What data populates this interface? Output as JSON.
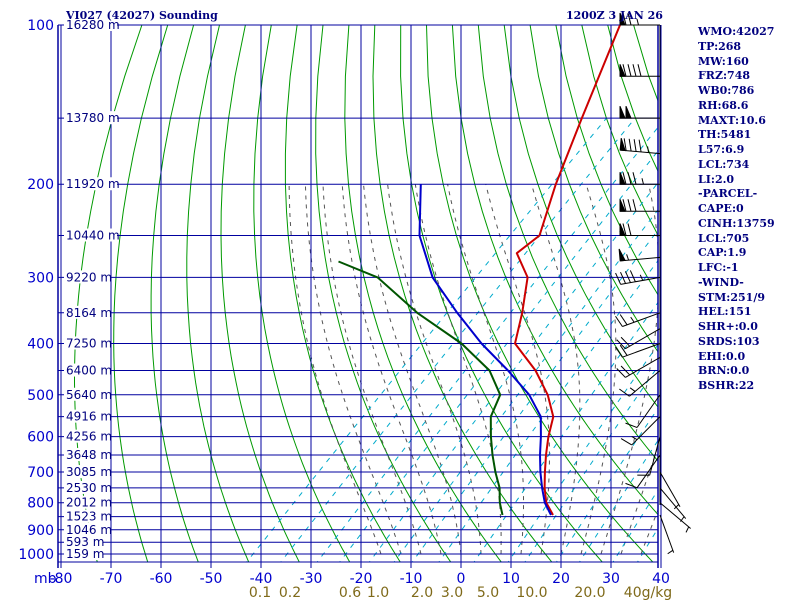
{
  "header": {
    "title": "VI027 (42027) Sounding",
    "datetime": "1200Z  3 JAN 26"
  },
  "stats": [
    "WMO:42027",
    "TP:268",
    "MW:160",
    "FRZ:748",
    "WB0:786",
    "RH:68.6",
    "MAXT:10.6",
    "TH:5481",
    "L57:6.9",
    "LCL:734",
    "LI:2.0",
    "-PARCEL-",
    "CAPE:0",
    "CINH:13759",
    "LCL:705",
    "CAP:1.9",
    "LFC:-1",
    "-WIND-",
    "STM:251/9",
    "HEL:151",
    "SHR+:0.0",
    "SRDS:103",
    "EHI:0.0",
    "BRN:0.0",
    "BSHR:22"
  ],
  "colors": {
    "grid": "#00009f",
    "dry_adiabat": "#009900",
    "moist_adiabat": "#555555",
    "mixing_ratio": "#00aacc",
    "temperature": "#cc0000",
    "dewpoint": "#005500",
    "parcel": "#0000cc",
    "label": "#00007f",
    "mixing_label": "#7f6a1a"
  },
  "chart_data": {
    "type": "line",
    "title": "VI027 (42027) Sounding",
    "ylabel": "mb",
    "pressure_ticks": [
      100,
      200,
      300,
      400,
      500,
      600,
      700,
      800,
      900,
      1000
    ],
    "pressure_tick_labels": [
      "100",
      "200",
      "300",
      "400",
      "500",
      "600",
      "700",
      "800",
      "900",
      "1000"
    ],
    "temperature_ticks": [
      -80,
      -70,
      -60,
      -50,
      -40,
      -30,
      -20,
      -10,
      0,
      10,
      20,
      30,
      40
    ],
    "temperature_tick_labels": [
      "-80",
      "-70",
      "-60",
      "-50",
      "-40",
      "-30",
      "-20",
      "-10",
      "0",
      "10",
      "20",
      "30",
      "40"
    ],
    "height_labels": [
      {
        "p": 100,
        "label": "16280 m"
      },
      {
        "p": 150,
        "label": "13780 m"
      },
      {
        "p": 200,
        "label": "11920 m"
      },
      {
        "p": 250,
        "label": "10440 m"
      },
      {
        "p": 300,
        "label": "9220 m"
      },
      {
        "p": 350,
        "label": "8164 m"
      },
      {
        "p": 400,
        "label": "7250 m"
      },
      {
        "p": 450,
        "label": "6400 m"
      },
      {
        "p": 500,
        "label": "5640 m"
      },
      {
        "p": 550,
        "label": "4916 m"
      },
      {
        "p": 600,
        "label": "4256 m"
      },
      {
        "p": 650,
        "label": "3648 m"
      },
      {
        "p": 700,
        "label": "3085 m"
      },
      {
        "p": 750,
        "label": "2530 m"
      },
      {
        "p": 800,
        "label": "2012 m"
      },
      {
        "p": 850,
        "label": "1523 m"
      },
      {
        "p": 900,
        "label": "1046 m"
      },
      {
        "p": 950,
        "label": "593 m"
      },
      {
        "p": 1000,
        "label": "159 m"
      }
    ],
    "mixing_ratio_labels": [
      "0.1",
      "0.2",
      "0.6",
      "1.0",
      "2.0",
      "3.0",
      "5.0",
      "10.0",
      "20.0",
      "40g/kg"
    ],
    "series": [
      {
        "name": "Temperature",
        "points": [
          [
            100,
            -74
          ],
          [
            150,
            -63
          ],
          [
            200,
            -55
          ],
          [
            250,
            -48
          ],
          [
            270,
            -49
          ],
          [
            300,
            -42
          ],
          [
            350,
            -36
          ],
          [
            400,
            -31.3
          ],
          [
            450,
            -21.8
          ],
          [
            500,
            -14.5
          ],
          [
            550,
            -9
          ],
          [
            600,
            -6
          ],
          [
            650,
            -2.8
          ],
          [
            700,
            0.4
          ],
          [
            750,
            3.5
          ],
          [
            800,
            6.8
          ],
          [
            844,
            10.6
          ]
        ]
      },
      {
        "name": "Dewpoint",
        "points": [
          [
            280,
            -83
          ],
          [
            300,
            -72
          ],
          [
            350,
            -57
          ],
          [
            400,
            -42
          ],
          [
            450,
            -31
          ],
          [
            500,
            -24
          ],
          [
            550,
            -21.5
          ],
          [
            600,
            -17.5
          ],
          [
            650,
            -13.5
          ],
          [
            700,
            -9.5
          ],
          [
            750,
            -5.5
          ],
          [
            800,
            -2.5
          ],
          [
            844,
            0.5
          ]
        ]
      },
      {
        "name": "Parcel",
        "points": [
          [
            200,
            -82
          ],
          [
            250,
            -72
          ],
          [
            300,
            -61
          ],
          [
            350,
            -49
          ],
          [
            400,
            -38
          ],
          [
            450,
            -27.3
          ],
          [
            500,
            -18.2
          ],
          [
            550,
            -11.5
          ],
          [
            600,
            -7.5
          ],
          [
            650,
            -4.0
          ],
          [
            700,
            -0.5
          ],
          [
            750,
            3
          ],
          [
            800,
            6.5
          ],
          [
            844,
            10.2
          ]
        ]
      }
    ],
    "winds": [
      {
        "p": 100,
        "dir": 270,
        "spd": 75
      },
      {
        "p": 125,
        "dir": 270,
        "spd": 90
      },
      {
        "p": 150,
        "dir": 270,
        "spd": 100
      },
      {
        "p": 175,
        "dir": 275,
        "spd": 95
      },
      {
        "p": 200,
        "dir": 270,
        "spd": 85
      },
      {
        "p": 225,
        "dir": 270,
        "spd": 80
      },
      {
        "p": 250,
        "dir": 270,
        "spd": 70
      },
      {
        "p": 275,
        "dir": 265,
        "spd": 55
      },
      {
        "p": 300,
        "dir": 260,
        "spd": 45
      },
      {
        "p": 350,
        "dir": 250,
        "spd": 25
      },
      {
        "p": 375,
        "dir": 240,
        "spd": 20
      },
      {
        "p": 400,
        "dir": 250,
        "spd": 20
      },
      {
        "p": 425,
        "dir": 240,
        "spd": 20
      },
      {
        "p": 450,
        "dir": 230,
        "spd": 15
      },
      {
        "p": 500,
        "dir": 215,
        "spd": 10
      },
      {
        "p": 550,
        "dir": 225,
        "spd": 15
      },
      {
        "p": 600,
        "dir": 195,
        "spd": 10
      },
      {
        "p": 650,
        "dir": 215,
        "spd": 10
      },
      {
        "p": 700,
        "dir": 150,
        "spd": 5
      },
      {
        "p": 750,
        "dir": 140,
        "spd": 5
      },
      {
        "p": 800,
        "dir": 130,
        "spd": 5
      },
      {
        "p": 844,
        "dir": 160,
        "spd": 5
      }
    ]
  }
}
